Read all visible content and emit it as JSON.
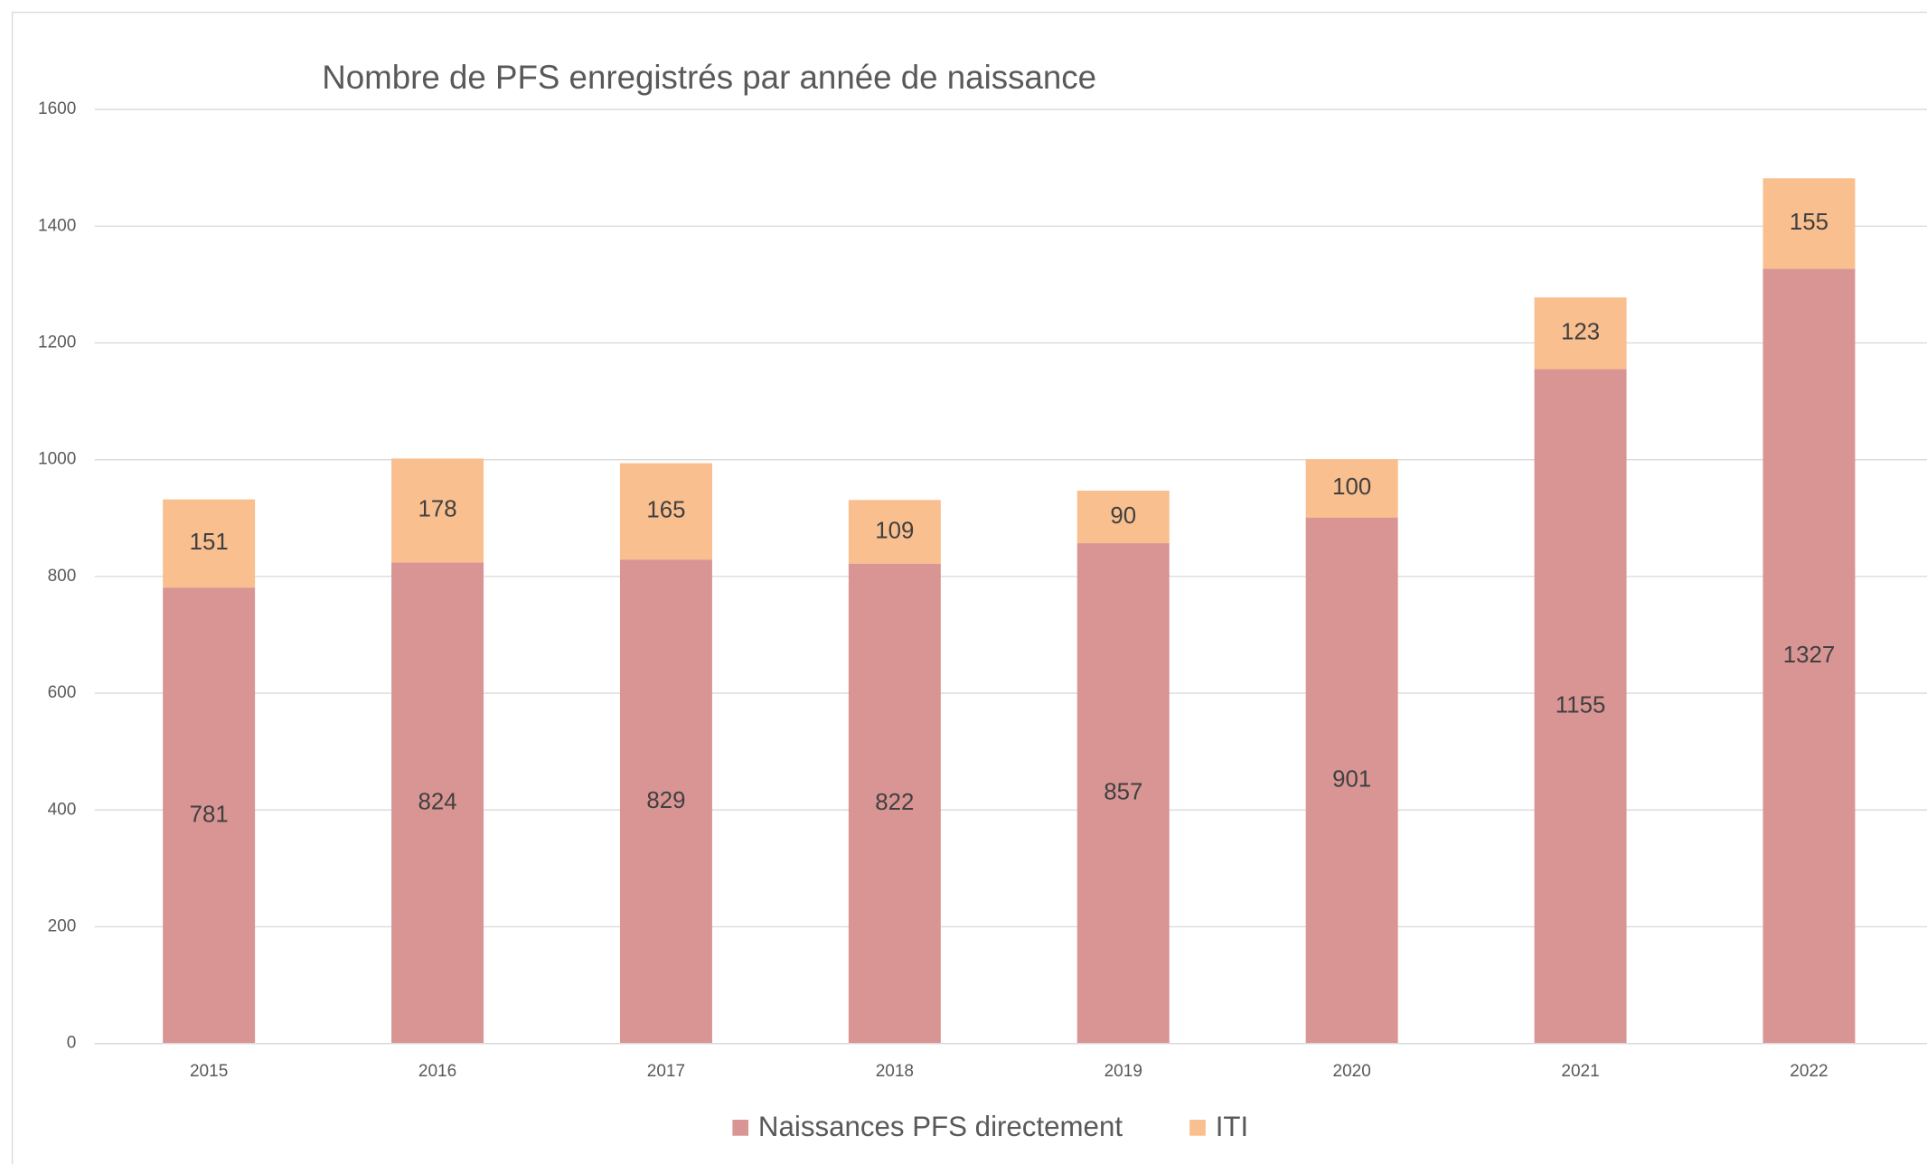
{
  "chart_data": {
    "type": "stacked_bar",
    "title": "Nombre de PFS enregistrés par année de naissance",
    "categories": [
      "2015",
      "2016",
      "2017",
      "2018",
      "2019",
      "2020",
      "2021",
      "2022"
    ],
    "series": [
      {
        "name": "Naissances PFS directement",
        "color": "#d99594",
        "values": [
          781,
          824,
          829,
          822,
          857,
          901,
          1155,
          1327
        ]
      },
      {
        "name": "ITI",
        "color": "#f9bf8f",
        "values": [
          151,
          178,
          165,
          109,
          90,
          100,
          123,
          155
        ]
      }
    ],
    "ylim": [
      0,
      1600
    ],
    "yticks": [
      0,
      200,
      400,
      600,
      800,
      1000,
      1200,
      1400,
      1600
    ],
    "grid": true,
    "legend": "bottom"
  }
}
